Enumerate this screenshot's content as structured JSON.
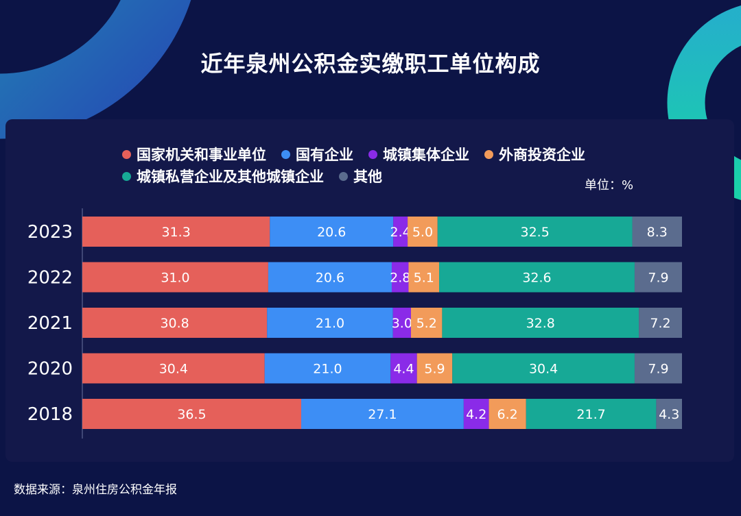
{
  "title": "近年泉州公积金实缴职工单位构成",
  "unit_label": "单位：%",
  "source": "数据来源：泉州住房公积金年报",
  "chart_data": {
    "type": "bar",
    "orientation": "horizontal",
    "stacked": true,
    "title": "近年泉州公积金实缴职工单位构成",
    "categories": [
      "2023",
      "2022",
      "2021",
      "2020",
      "2018"
    ],
    "series": [
      {
        "name": "国家机关和事业单位",
        "color": "#e5605a",
        "values": [
          31.3,
          31.0,
          30.8,
          30.4,
          36.5
        ]
      },
      {
        "name": "国有企业",
        "color": "#3d8ef5",
        "values": [
          20.6,
          20.6,
          21.0,
          21.0,
          27.1
        ]
      },
      {
        "name": "城镇集体企业",
        "color": "#8a2be8",
        "values": [
          2.4,
          2.8,
          3.0,
          4.4,
          4.2
        ]
      },
      {
        "name": "外商投资企业",
        "color": "#f29b5a",
        "values": [
          5.0,
          5.1,
          5.2,
          5.9,
          6.2
        ]
      },
      {
        "name": "城镇私营企业及其他城镇企业",
        "color": "#17a996",
        "values": [
          32.5,
          32.6,
          32.8,
          30.4,
          21.7
        ]
      },
      {
        "name": "其他",
        "color": "#5b6c8e",
        "values": [
          8.3,
          7.9,
          7.2,
          7.9,
          4.3
        ]
      }
    ],
    "xlim": [
      0,
      100
    ],
    "legend": "top",
    "grid": false
  }
}
